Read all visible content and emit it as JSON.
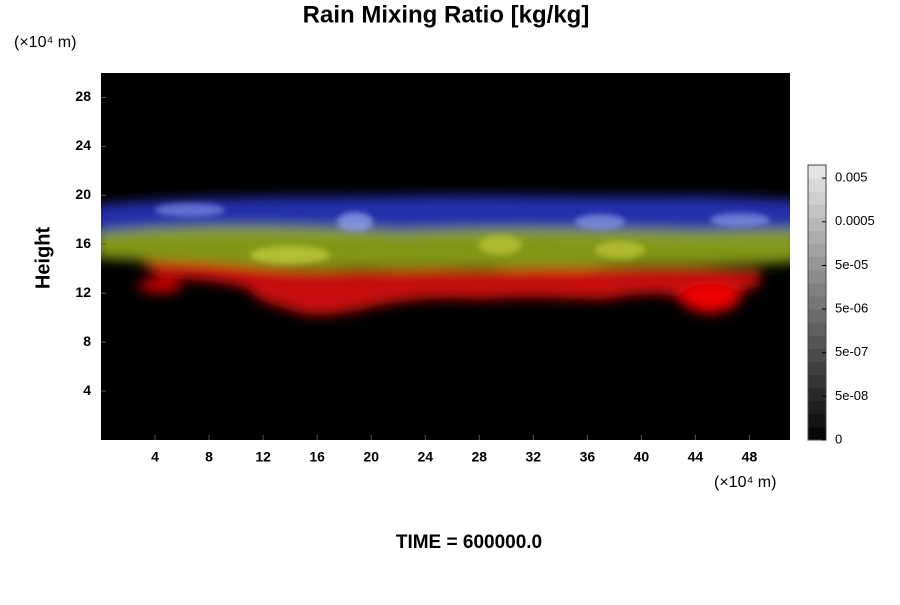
{
  "chart_data": {
    "type": "heatmap",
    "title": "Rain Mixing Ratio [kg/kg]",
    "y_unit_label": "(×10⁴ m)",
    "x_unit_label": "(×10⁴ m)",
    "ylabel": "Height",
    "xlim": [
      0,
      51
    ],
    "ylim": [
      0,
      30
    ],
    "xticks": [
      4,
      8,
      12,
      16,
      20,
      24,
      28,
      32,
      36,
      40,
      44,
      48
    ],
    "yticks": [
      4,
      8,
      12,
      16,
      20,
      24,
      28
    ],
    "colorbar": {
      "scale": "log",
      "lim": [
        0,
        0.01
      ],
      "ticks": [
        0.005,
        0.0005,
        {
          "value": 5e-05,
          "label": "5e-05"
        },
        {
          "value": 5e-06,
          "label": "5e-06"
        },
        {
          "value": 5e-07,
          "label": "5e-07"
        },
        {
          "value": 5e-08,
          "label": "5e-08"
        },
        0
      ]
    },
    "footer": "TIME = 600000.0"
  }
}
